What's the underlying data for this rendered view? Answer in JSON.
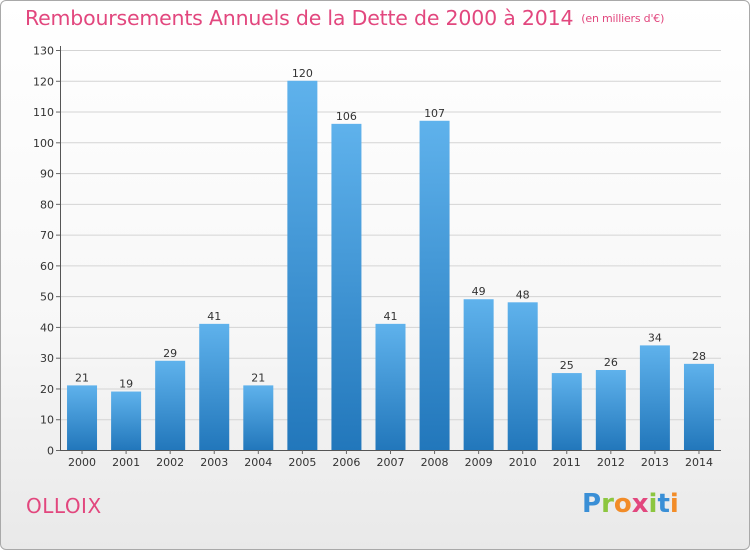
{
  "header": {
    "title": "Remboursements Annuels de la Dette de 2000 à 2014",
    "unit": "(en milliers d'€)"
  },
  "footer": {
    "commune": "OLLOIX",
    "brand_letters": [
      {
        "ch": "P",
        "color": "#3a8fd6"
      },
      {
        "ch": "r",
        "color": "#8cc63f"
      },
      {
        "ch": "o",
        "color": "#f28c28"
      },
      {
        "ch": "x",
        "color": "#e2477e"
      },
      {
        "ch": "i",
        "color": "#8cc63f"
      },
      {
        "ch": "t",
        "color": "#3a8fd6"
      },
      {
        "ch": "i",
        "color": "#f28c28"
      }
    ]
  },
  "colors": {
    "bar_top": "#5fb2ec",
    "bar_bottom": "#2277bb",
    "accent": "#e2477e",
    "grid": "#d4d4d4"
  },
  "chart_data": {
    "type": "bar",
    "categories": [
      "2000",
      "2001",
      "2002",
      "2003",
      "2004",
      "2005",
      "2006",
      "2007",
      "2008",
      "2009",
      "2010",
      "2011",
      "2012",
      "2013",
      "2014"
    ],
    "values": [
      21,
      19,
      29,
      41,
      21,
      120,
      106,
      41,
      107,
      49,
      48,
      25,
      26,
      34,
      28
    ],
    "value_labels": [
      "21",
      "19",
      "29",
      "41",
      "21",
      "120",
      "106",
      "41",
      "107",
      "49",
      "48",
      "25",
      "26",
      "34",
      "28"
    ],
    "y_ticks": [
      0,
      10,
      20,
      30,
      40,
      50,
      60,
      70,
      80,
      90,
      100,
      110,
      120,
      130
    ],
    "ylim": [
      0,
      130
    ],
    "grid": true,
    "legend": "none"
  }
}
